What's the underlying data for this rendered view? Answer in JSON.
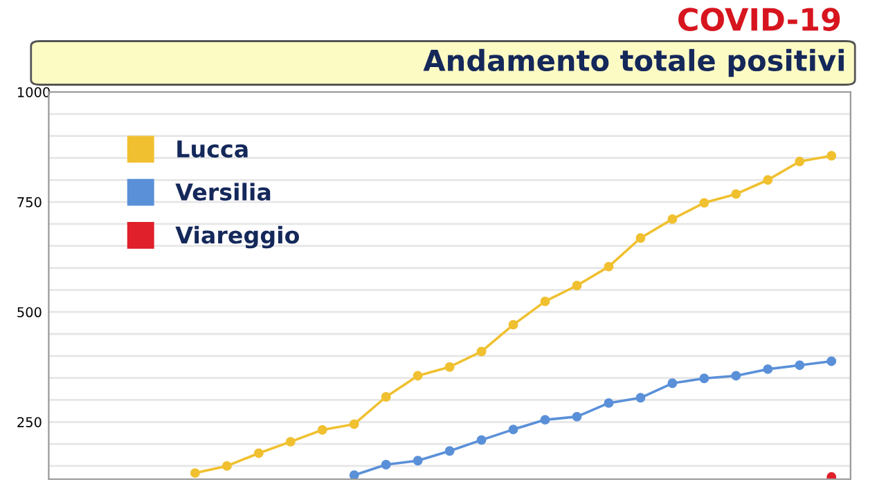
{
  "chart_data": {
    "type": "line",
    "title": "COVID-19",
    "subtitle": "Andamento totale positivi",
    "categories": [
      null,
      null,
      null,
      null,
      null,
      null,
      null,
      null,
      null,
      null,
      null,
      null,
      null,
      null,
      null,
      null,
      null,
      null,
      null,
      null,
      null
    ],
    "series": [
      {
        "name": "Lucca",
        "color": "#f0c030",
        "values": [
          134,
          150,
          179,
          205,
          232,
          245,
          307,
          355,
          375,
          410,
          471,
          524,
          560,
          603,
          668,
          711,
          748,
          768,
          800,
          842,
          855
        ]
      },
      {
        "name": "Versilia",
        "color": "#5a90d8",
        "values": [
          null,
          null,
          null,
          null,
          null,
          129,
          153,
          162,
          184,
          209,
          233,
          255,
          262,
          293,
          305,
          338,
          349,
          355,
          370,
          379,
          388
        ]
      },
      {
        "name": "Viareggio",
        "color": "#e0202a",
        "values": [
          null,
          null,
          null,
          null,
          null,
          null,
          null,
          null,
          null,
          null,
          null,
          null,
          null,
          null,
          null,
          null,
          null,
          null,
          null,
          null,
          125
        ]
      }
    ],
    "ylim": [
      120,
      1000
    ],
    "yticks": [
      {
        "value": 150,
        "label": null
      },
      {
        "value": 200,
        "label": null
      },
      250,
      {
        "value": 300,
        "label": null
      },
      {
        "value": 350,
        "label": null
      },
      {
        "value": 400,
        "label": null
      },
      {
        "value": 450,
        "label": null
      },
      500,
      {
        "value": 550,
        "label": null
      },
      {
        "value": 600,
        "label": null
      },
      {
        "value": 650,
        "label": null
      },
      {
        "value": 700,
        "label": null
      },
      750,
      {
        "value": 800,
        "label": null
      },
      {
        "value": 850,
        "label": null
      },
      {
        "value": 900,
        "label": null
      },
      {
        "value": 950,
        "label": null
      },
      1000
    ],
    "tick_labels": "y",
    "grid": "y",
    "legend": "top left",
    "marker": "circle",
    "line_style": "solid"
  }
}
